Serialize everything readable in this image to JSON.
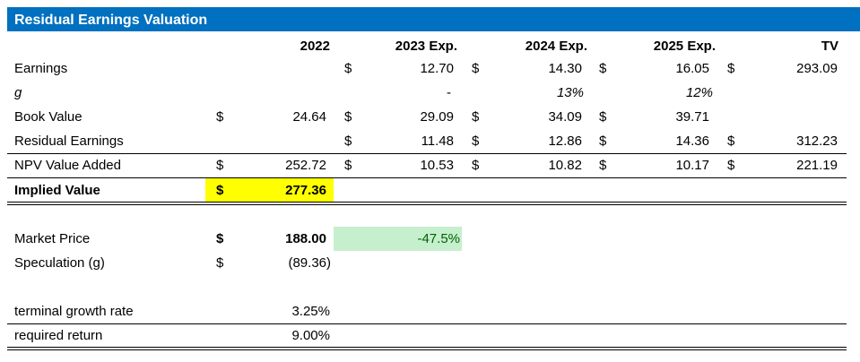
{
  "title": "Residual Earnings Valuation",
  "headers": [
    "2022",
    "2023 Exp.",
    "2024 Exp.",
    "2025 Exp.",
    "TV"
  ],
  "rows": [
    {
      "label": "Earnings",
      "c2022": [
        "",
        ""
      ],
      "c2023": [
        "$",
        "12.70"
      ],
      "c2024": [
        "$",
        "14.30"
      ],
      "c2025": [
        "$",
        "16.05"
      ],
      "tv": [
        "$",
        "293.09"
      ]
    },
    {
      "label": "g",
      "c2022": [
        "",
        ""
      ],
      "c2023": [
        "",
        "-"
      ],
      "c2024": [
        "",
        "13%"
      ],
      "c2025": [
        "",
        "12%"
      ],
      "tv": [
        "",
        ""
      ]
    },
    {
      "label": "Book Value",
      "c2022": [
        "$",
        "24.64"
      ],
      "c2023": [
        "$",
        "29.09"
      ],
      "c2024": [
        "$",
        "34.09"
      ],
      "c2025": [
        "$",
        "39.71"
      ],
      "tv": [
        "",
        ""
      ]
    },
    {
      "label": "Residual Earnings",
      "c2022": [
        "",
        ""
      ],
      "c2023": [
        "$",
        "11.48"
      ],
      "c2024": [
        "$",
        "12.86"
      ],
      "c2025": [
        "$",
        "14.36"
      ],
      "tv": [
        "$",
        "312.23"
      ]
    },
    {
      "label": "NPV Value Added",
      "c2022": [
        "$",
        "252.72"
      ],
      "c2023": [
        "$",
        "10.53"
      ],
      "c2024": [
        "$",
        "10.82"
      ],
      "c2025": [
        "$",
        "10.17"
      ],
      "tv": [
        "$",
        "221.19"
      ]
    }
  ],
  "implied": {
    "label": "Implied Value",
    "currency": "$",
    "value": "277.36"
  },
  "market": {
    "label": "Market Price",
    "currency": "$",
    "value": "188.00",
    "diff": "-47.5%"
  },
  "speculation": {
    "label": "Speculation (g)",
    "currency": "$",
    "value": "(89.36)"
  },
  "terminal": {
    "label": "terminal growth rate",
    "value": "3.25%"
  },
  "required": {
    "label": "required return",
    "value": "9.00%"
  },
  "colors": {
    "header_bg": "#0070c0",
    "highlight_yellow": "#ffff00",
    "highlight_green": "#c6efce",
    "green_text": "#006100"
  }
}
